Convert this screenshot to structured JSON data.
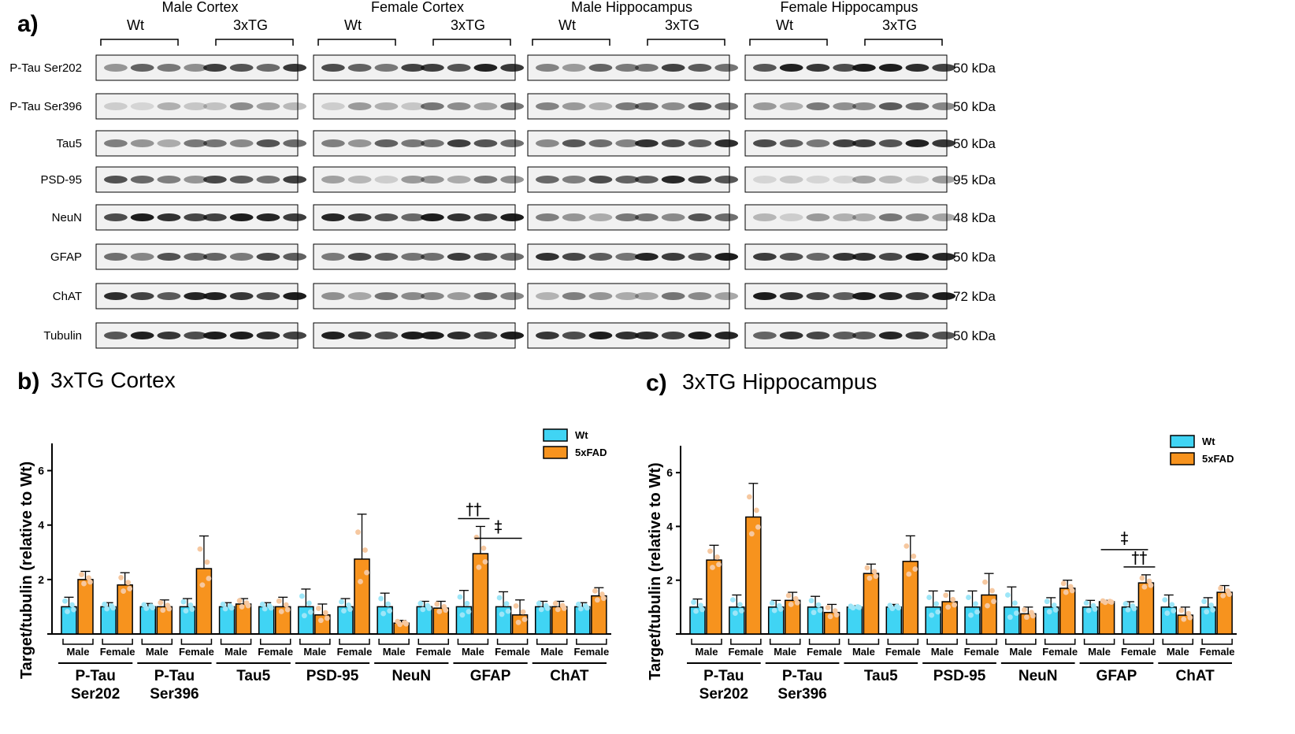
{
  "blot": {
    "panel_label": "a)",
    "groups": [
      {
        "title": "Male Cortex",
        "wt": "Wt",
        "tg": "3xTG"
      },
      {
        "title": "Female Cortex",
        "wt": "Wt",
        "tg": "3xTG"
      },
      {
        "title": "Male Hippocampus",
        "wt": "Wt",
        "tg": "3xTG"
      },
      {
        "title": "Female Hippocampus",
        "wt": "Wt",
        "tg": "3xTG"
      }
    ],
    "rows": [
      {
        "label": "P-Tau Ser202",
        "kda": "50 kDa",
        "intensity": [
          0.6,
          0.7,
          0.55,
          0.85
        ]
      },
      {
        "label": "P-Tau  Ser396",
        "kda": "50 kDa",
        "intensity": [
          0.25,
          0.35,
          0.45,
          0.45
        ]
      },
      {
        "label": "Tau5",
        "kda": "50 kDa",
        "intensity": [
          0.5,
          0.6,
          0.65,
          0.7
        ]
      },
      {
        "label": "PSD-95",
        "kda": "95 kDa",
        "intensity": [
          0.6,
          0.35,
          0.7,
          0.15
        ]
      },
      {
        "label": "NeuN",
        "kda": "48 kDa",
        "intensity": [
          0.85,
          0.8,
          0.5,
          0.35
        ]
      },
      {
        "label": "GFAP",
        "kda": "50 kDa",
        "intensity": [
          0.6,
          0.65,
          0.75,
          0.8
        ]
      },
      {
        "label": "ChAT",
        "kda": "72 kDa",
        "intensity": [
          0.8,
          0.45,
          0.4,
          0.85
        ]
      },
      {
        "label": "Tubulin",
        "kda": "50 kDa",
        "intensity": [
          0.85,
          0.85,
          0.85,
          0.75
        ]
      }
    ]
  },
  "chart_data": [
    {
      "type": "bar",
      "panel_label": "b)",
      "title": "3xTG Cortex",
      "ylabel": "Target/tubulin (relative to Wt)",
      "ylim": [
        0,
        7
      ],
      "yticks": [
        2,
        4,
        6
      ],
      "legend": {
        "position": "top-right",
        "entries": [
          "Wt",
          "5xFAD"
        ]
      },
      "colors": {
        "Wt": "#40D4F4",
        "5xFAD": "#F7931E",
        "dots_wt": "#9DE6F8",
        "dots_tg": "#F6C8A0"
      },
      "sex_labels": [
        "Male",
        "Female"
      ],
      "targets": [
        {
          "name": [
            "P-Tau",
            "Ser202"
          ],
          "male": {
            "wt": 1.0,
            "wt_err": 0.35,
            "tg": 2.0,
            "tg_err": 0.3
          },
          "female": {
            "wt": 1.0,
            "wt_err": 0.15,
            "tg": 1.8,
            "tg_err": 0.45
          }
        },
        {
          "name": [
            "P-Tau",
            "Ser396"
          ],
          "male": {
            "wt": 1.0,
            "wt_err": 0.12,
            "tg": 1.0,
            "tg_err": 0.25
          },
          "female": {
            "wt": 1.0,
            "wt_err": 0.3,
            "tg": 2.4,
            "tg_err": 1.2
          }
        },
        {
          "name": [
            "Tau5"
          ],
          "male": {
            "wt": 1.0,
            "wt_err": 0.15,
            "tg": 1.1,
            "tg_err": 0.2
          },
          "female": {
            "wt": 1.0,
            "wt_err": 0.15,
            "tg": 1.0,
            "tg_err": 0.35
          }
        },
        {
          "name": [
            "PSD-95"
          ],
          "male": {
            "wt": 1.0,
            "wt_err": 0.65,
            "tg": 0.7,
            "tg_err": 0.4
          },
          "female": {
            "wt": 1.0,
            "wt_err": 0.3,
            "tg": 2.75,
            "tg_err": 1.65
          }
        },
        {
          "name": [
            "NeuN"
          ],
          "male": {
            "wt": 1.0,
            "wt_err": 0.5,
            "tg": 0.4,
            "tg_err": 0.1
          },
          "female": {
            "wt": 1.0,
            "wt_err": 0.2,
            "tg": 0.95,
            "tg_err": 0.25
          }
        },
        {
          "name": [
            "GFAP"
          ],
          "male": {
            "wt": 1.0,
            "wt_err": 0.6,
            "tg": 2.95,
            "tg_err": 1.0
          },
          "female": {
            "wt": 1.0,
            "wt_err": 0.55,
            "tg": 0.7,
            "tg_err": 0.55
          }
        },
        {
          "name": [
            "ChAT"
          ],
          "male": {
            "wt": 1.0,
            "wt_err": 0.2,
            "tg": 1.0,
            "tg_err": 0.2
          },
          "female": {
            "wt": 1.0,
            "wt_err": 0.15,
            "tg": 1.4,
            "tg_err": 0.3
          }
        }
      ],
      "annotations": [
        {
          "text": "††",
          "target": "GFAP",
          "sex": "male",
          "type": "pair"
        },
        {
          "text": "‡",
          "target": "GFAP",
          "type": "across"
        }
      ]
    },
    {
      "type": "bar",
      "panel_label": "c)",
      "title": "3xTG Hippocampus",
      "ylabel": "Target/tubulin (relative to Wt)",
      "ylim": [
        0,
        7
      ],
      "yticks": [
        2,
        4,
        6
      ],
      "legend": {
        "position": "top-right",
        "entries": [
          "Wt",
          "5xFAD"
        ]
      },
      "colors": {
        "Wt": "#40D4F4",
        "5xFAD": "#F7931E",
        "dots_wt": "#9DE6F8",
        "dots_tg": "#F6C8A0"
      },
      "sex_labels": [
        "Male",
        "Female"
      ],
      "targets": [
        {
          "name": [
            "P-Tau",
            "Ser202"
          ],
          "male": {
            "wt": 1.0,
            "wt_err": 0.3,
            "tg": 2.75,
            "tg_err": 0.55
          },
          "female": {
            "wt": 1.0,
            "wt_err": 0.45,
            "tg": 4.35,
            "tg_err": 1.25
          }
        },
        {
          "name": [
            "P-Tau",
            "Ser396"
          ],
          "male": {
            "wt": 1.0,
            "wt_err": 0.25,
            "tg": 1.25,
            "tg_err": 0.3
          },
          "female": {
            "wt": 1.0,
            "wt_err": 0.4,
            "tg": 0.8,
            "tg_err": 0.3
          }
        },
        {
          "name": [
            "Tau5"
          ],
          "male": {
            "wt": 1.0,
            "wt_err": 0.05,
            "tg": 2.25,
            "tg_err": 0.35
          },
          "female": {
            "wt": 1.0,
            "wt_err": 0.1,
            "tg": 2.7,
            "tg_err": 0.95
          }
        },
        {
          "name": [
            "PSD-95"
          ],
          "male": {
            "wt": 1.0,
            "wt_err": 0.6,
            "tg": 1.2,
            "tg_err": 0.4
          },
          "female": {
            "wt": 1.0,
            "wt_err": 0.6,
            "tg": 1.45,
            "tg_err": 0.8
          }
        },
        {
          "name": [
            "NeuN"
          ],
          "male": {
            "wt": 1.0,
            "wt_err": 0.75,
            "tg": 0.75,
            "tg_err": 0.25
          },
          "female": {
            "wt": 1.0,
            "wt_err": 0.35,
            "tg": 1.7,
            "tg_err": 0.3
          }
        },
        {
          "name": [
            "GFAP"
          ],
          "male": {
            "wt": 1.0,
            "wt_err": 0.25,
            "tg": 1.2,
            "tg_err": 0.05
          },
          "female": {
            "wt": 1.0,
            "wt_err": 0.2,
            "tg": 1.9,
            "tg_err": 0.3
          }
        },
        {
          "name": [
            "ChAT"
          ],
          "male": {
            "wt": 1.0,
            "wt_err": 0.45,
            "tg": 0.7,
            "tg_err": 0.3
          },
          "female": {
            "wt": 1.0,
            "wt_err": 0.35,
            "tg": 1.55,
            "tg_err": 0.25
          }
        }
      ],
      "annotations": [
        {
          "text": "††",
          "target": "GFAP",
          "sex": "female",
          "type": "pair"
        },
        {
          "text": "‡",
          "target": "GFAP",
          "type": "across"
        }
      ]
    }
  ]
}
